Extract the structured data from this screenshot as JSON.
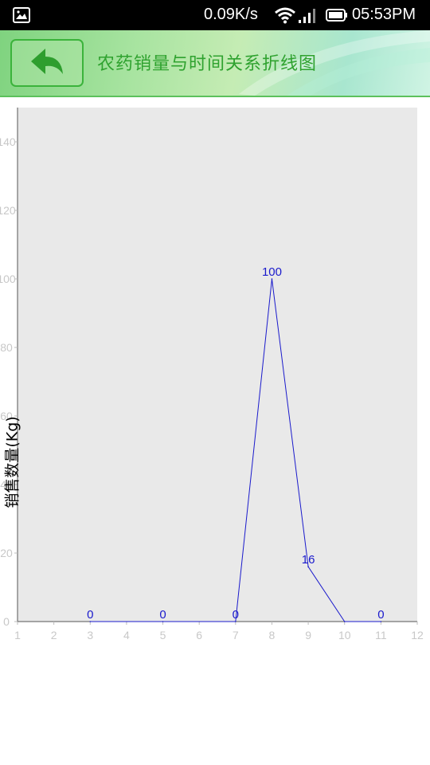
{
  "status_bar": {
    "speed": "0.09K/s",
    "time": "05:53PM",
    "icons": [
      "picture-icon",
      "wifi-icon",
      "signal-icon",
      "battery-icon"
    ]
  },
  "header": {
    "back_icon": "back-arrow-icon",
    "title": "农药销量与时间关系折线图",
    "accent_color": "#2fa22f"
  },
  "chart_data": {
    "type": "line",
    "title": "",
    "xlabel": "",
    "ylabel": "销售数量(Kg)",
    "xlim": [
      1,
      12
    ],
    "ylim": [
      0,
      150
    ],
    "x_ticks": [
      "1",
      "2",
      "3",
      "4",
      "5",
      "6",
      "7",
      "8",
      "9",
      "10",
      "11",
      "12"
    ],
    "y_ticks": [
      "0",
      "20",
      "40",
      "60",
      "80",
      "100",
      "120",
      "140"
    ],
    "grid": false,
    "series": [
      {
        "color": "#1a1acc",
        "points": [
          {
            "x": 3,
            "y": 0
          },
          {
            "x": 5,
            "y": 0
          },
          {
            "x": 7,
            "y": 0
          },
          {
            "x": 8,
            "y": 100
          },
          {
            "x": 9,
            "y": 16
          },
          {
            "x": 10,
            "y": 0
          },
          {
            "x": 11,
            "y": 0
          }
        ],
        "data_labels": [
          {
            "x": 3,
            "y": 0,
            "label": "0"
          },
          {
            "x": 5,
            "y": 0,
            "label": "0"
          },
          {
            "x": 7,
            "y": 0,
            "label": "0"
          },
          {
            "x": 8,
            "y": 100,
            "label": "100"
          },
          {
            "x": 9,
            "y": 16,
            "label": "16"
          },
          {
            "x": 11,
            "y": 0,
            "label": "0"
          }
        ]
      }
    ],
    "plot_background": "#e9e9e9"
  }
}
